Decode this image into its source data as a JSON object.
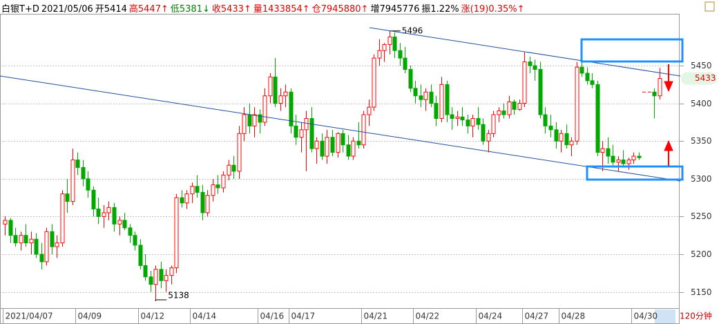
{
  "header": [
    {
      "text": "白银T+D",
      "color": "#000000"
    },
    {
      "text": "2021/05/06",
      "color": "#000000"
    },
    {
      "text": "开5414",
      "color": "#000000"
    },
    {
      "text": "高5447↑",
      "color": "#e00000"
    },
    {
      "text": "低5381↓",
      "color": "#008000"
    },
    {
      "text": "收5433↑",
      "color": "#e00000"
    },
    {
      "text": "量1433854↑",
      "color": "#e00000"
    },
    {
      "text": "仓7945880↑",
      "color": "#e00000"
    },
    {
      "text": "增7945776",
      "color": "#000000"
    },
    {
      "text": "振1.22%",
      "color": "#000000"
    },
    {
      "text": "涨(19)0.35%↑",
      "color": "#e00000"
    }
  ],
  "chart_data": {
    "type": "candlestick",
    "period": "120分钟",
    "up_color": "#ff0000",
    "down_color": "#00a800",
    "ylim": [
      5128.6,
      5518.7
    ],
    "yticks": [
      5150,
      5200,
      5250,
      5300,
      5350,
      5400,
      5450
    ],
    "grid": true,
    "high_label": 5496,
    "low_label": 5138,
    "last_label": 5433,
    "categories": [
      "2021/04/07",
      null,
      null,
      null,
      null,
      null,
      null,
      null,
      null,
      null,
      null,
      null,
      null,
      null,
      "04/09",
      null,
      null,
      null,
      null,
      null,
      null,
      null,
      null,
      null,
      null,
      null,
      "04/12",
      null,
      null,
      null,
      null,
      null,
      null,
      null,
      null,
      null,
      "04/14",
      null,
      null,
      null,
      null,
      null,
      null,
      null,
      null,
      null,
      null,
      null,
      null,
      "04/16",
      null,
      null,
      null,
      null,
      null,
      "04/17",
      null,
      null,
      null,
      null,
      null,
      null,
      null,
      null,
      null,
      null,
      null,
      null,
      null,
      "04/21",
      null,
      null,
      null,
      null,
      null,
      null,
      null,
      null,
      null,
      "04/22",
      null,
      null,
      null,
      null,
      null,
      null,
      null,
      null,
      null,
      null,
      null,
      "04/24",
      null,
      null,
      null,
      null,
      null,
      null,
      null,
      null,
      "04/27",
      null,
      null,
      null,
      null,
      null,
      null,
      "04/28",
      null,
      null,
      null,
      null,
      null,
      null,
      null,
      null,
      null,
      null,
      null,
      null,
      null,
      "04/30",
      null,
      null,
      null,
      null,
      null
    ],
    "ohlc": [
      [
        5240,
        5250,
        5225,
        5245
      ],
      [
        5245,
        5248,
        5215,
        5225
      ],
      [
        5225,
        5235,
        5210,
        5215
      ],
      [
        5215,
        5230,
        5205,
        5225
      ],
      [
        5225,
        5240,
        5210,
        5215
      ],
      [
        5215,
        5230,
        5200,
        5220
      ],
      [
        5220,
        5228,
        5195,
        5200
      ],
      [
        5200,
        5215,
        5180,
        5190
      ],
      [
        5190,
        5235,
        5185,
        5230
      ],
      [
        5230,
        5240,
        5200,
        5210
      ],
      [
        5210,
        5225,
        5195,
        5215
      ],
      [
        5215,
        5285,
        5210,
        5280
      ],
      [
        5280,
        5300,
        5255,
        5270
      ],
      [
        5270,
        5340,
        5265,
        5325
      ],
      [
        5325,
        5335,
        5305,
        5315
      ],
      [
        5315,
        5325,
        5290,
        5300
      ],
      [
        5300,
        5310,
        5275,
        5285
      ],
      [
        5285,
        5290,
        5250,
        5260
      ],
      [
        5260,
        5275,
        5240,
        5250
      ],
      [
        5250,
        5265,
        5235,
        5255
      ],
      [
        5255,
        5270,
        5245,
        5262
      ],
      [
        5262,
        5268,
        5230,
        5240
      ],
      [
        5240,
        5250,
        5225,
        5245
      ],
      [
        5245,
        5255,
        5232,
        5235
      ],
      [
        5235,
        5240,
        5215,
        5225
      ],
      [
        5225,
        5230,
        5205,
        5212
      ],
      [
        5212,
        5220,
        5180,
        5185
      ],
      [
        5185,
        5200,
        5165,
        5170
      ],
      [
        5170,
        5178,
        5150,
        5160
      ],
      [
        5160,
        5185,
        5138,
        5180
      ],
      [
        5180,
        5190,
        5155,
        5165
      ],
      [
        5165,
        5180,
        5150,
        5172
      ],
      [
        5172,
        5185,
        5160,
        5182
      ],
      [
        5182,
        5280,
        5175,
        5275
      ],
      [
        5275,
        5285,
        5262,
        5268
      ],
      [
        5268,
        5285,
        5260,
        5280
      ],
      [
        5280,
        5295,
        5268,
        5290
      ],
      [
        5290,
        5305,
        5275,
        5282
      ],
      [
        5282,
        5292,
        5245,
        5255
      ],
      [
        5255,
        5285,
        5250,
        5278
      ],
      [
        5278,
        5300,
        5270,
        5292
      ],
      [
        5292,
        5305,
        5280,
        5288
      ],
      [
        5288,
        5310,
        5282,
        5305
      ],
      [
        5305,
        5325,
        5298,
        5318
      ],
      [
        5318,
        5330,
        5300,
        5310
      ],
      [
        5310,
        5370,
        5300,
        5360
      ],
      [
        5360,
        5395,
        5350,
        5385
      ],
      [
        5385,
        5400,
        5360,
        5370
      ],
      [
        5370,
        5395,
        5355,
        5385
      ],
      [
        5385,
        5392,
        5360,
        5375
      ],
      [
        5375,
        5420,
        5370,
        5410
      ],
      [
        5410,
        5440,
        5400,
        5435
      ],
      [
        5435,
        5460,
        5395,
        5400
      ],
      [
        5400,
        5420,
        5390,
        5410
      ],
      [
        5410,
        5425,
        5395,
        5415
      ],
      [
        5415,
        5420,
        5360,
        5370
      ],
      [
        5370,
        5385,
        5345,
        5355
      ],
      [
        5355,
        5375,
        5335,
        5365
      ],
      [
        5365,
        5390,
        5310,
        5380
      ],
      [
        5380,
        5395,
        5335,
        5340
      ],
      [
        5340,
        5355,
        5320,
        5350
      ],
      [
        5350,
        5360,
        5325,
        5330
      ],
      [
        5330,
        5365,
        5320,
        5355
      ],
      [
        5355,
        5365,
        5330,
        5335
      ],
      [
        5335,
        5362,
        5328,
        5360
      ],
      [
        5360,
        5365,
        5335,
        5345
      ],
      [
        5345,
        5358,
        5325,
        5330
      ],
      [
        5330,
        5355,
        5325,
        5350
      ],
      [
        5350,
        5375,
        5340,
        5345
      ],
      [
        5345,
        5390,
        5340,
        5385
      ],
      [
        5385,
        5405,
        5370,
        5395
      ],
      [
        5395,
        5465,
        5390,
        5460
      ],
      [
        5460,
        5485,
        5450,
        5470
      ],
      [
        5470,
        5480,
        5455,
        5478
      ],
      [
        5478,
        5496,
        5465,
        5488
      ],
      [
        5488,
        5494,
        5460,
        5470
      ],
      [
        5470,
        5480,
        5450,
        5460
      ],
      [
        5460,
        5475,
        5440,
        5445
      ],
      [
        5445,
        5450,
        5415,
        5420
      ],
      [
        5420,
        5430,
        5400,
        5410
      ],
      [
        5410,
        5425,
        5395,
        5405
      ],
      [
        5405,
        5420,
        5390,
        5415
      ],
      [
        5415,
        5425,
        5395,
        5400
      ],
      [
        5400,
        5410,
        5370,
        5380
      ],
      [
        5380,
        5435,
        5375,
        5425
      ],
      [
        5425,
        5430,
        5375,
        5385
      ],
      [
        5385,
        5395,
        5365,
        5380
      ],
      [
        5380,
        5390,
        5370,
        5382
      ],
      [
        5382,
        5395,
        5370,
        5378
      ],
      [
        5378,
        5385,
        5360,
        5370
      ],
      [
        5370,
        5385,
        5355,
        5380
      ],
      [
        5380,
        5395,
        5365,
        5372
      ],
      [
        5372,
        5380,
        5345,
        5350
      ],
      [
        5350,
        5365,
        5335,
        5360
      ],
      [
        5360,
        5390,
        5355,
        5385
      ],
      [
        5385,
        5395,
        5375,
        5390
      ],
      [
        5390,
        5400,
        5380,
        5385
      ],
      [
        5385,
        5410,
        5380,
        5402
      ],
      [
        5402,
        5405,
        5385,
        5392
      ],
      [
        5392,
        5405,
        5390,
        5400
      ],
      [
        5400,
        5468,
        5395,
        5455
      ],
      [
        5455,
        5462,
        5440,
        5450
      ],
      [
        5450,
        5458,
        5430,
        5445
      ],
      [
        5445,
        5455,
        5380,
        5385
      ],
      [
        5385,
        5395,
        5360,
        5370
      ],
      [
        5370,
        5385,
        5355,
        5365
      ],
      [
        5365,
        5375,
        5340,
        5350
      ],
      [
        5350,
        5365,
        5335,
        5360
      ],
      [
        5360,
        5372,
        5340,
        5345
      ],
      [
        5345,
        5355,
        5330,
        5350
      ],
      [
        5350,
        5455,
        5345,
        5448
      ],
      [
        5448,
        5455,
        5435,
        5440
      ],
      [
        5440,
        5448,
        5425,
        5430
      ],
      [
        5430,
        5440,
        5420,
        5425
      ],
      [
        5425,
        5430,
        5330,
        5335
      ],
      [
        5335,
        5350,
        5310,
        5340
      ],
      [
        5340,
        5355,
        5320,
        5330
      ],
      [
        5330,
        5345,
        5318,
        5322
      ],
      [
        5322,
        5330,
        5310,
        5325
      ],
      [
        5325,
        5338,
        5315,
        5320
      ],
      [
        5320,
        5328,
        5312,
        5325
      ],
      [
        5325,
        5335,
        5320,
        5330
      ],
      [
        5330,
        5335,
        5325,
        5328
      ],
      [
        5415,
        5415,
        5415,
        5415
      ],
      [
        5415,
        5415,
        5415,
        5415
      ],
      [
        5415,
        5420,
        5380,
        5410
      ],
      [
        5410,
        5447,
        5405,
        5433
      ]
    ]
  }
}
